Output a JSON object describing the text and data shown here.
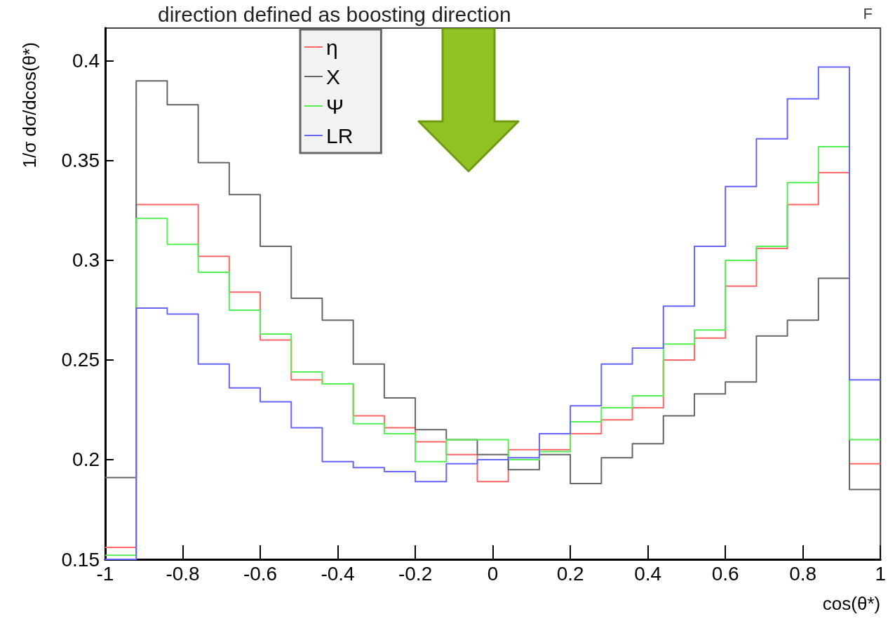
{
  "chart_data": {
    "type": "histogram",
    "title": "direction defined as boosting direction",
    "annotations": [
      "F"
    ],
    "xlabel": "cos(θ*)",
    "ylabel": "1/σ dσ/dcos(θ*)",
    "bins": [
      -1,
      -0.92,
      -0.84,
      -0.76,
      -0.68,
      -0.6,
      -0.52,
      -0.44,
      -0.36,
      -0.28,
      -0.2,
      -0.12,
      -0.04,
      0.04,
      0.12,
      0.2,
      0.28,
      0.36,
      0.44,
      0.52,
      0.6,
      0.68,
      0.76,
      0.84,
      0.92,
      1
    ],
    "series": [
      {
        "name": "η",
        "color": "#ff6666",
        "values": [
          0.156,
          0.328,
          0.328,
          0.302,
          0.284,
          0.26,
          0.24,
          0.238,
          0.222,
          0.216,
          0.209,
          0.2025,
          0.189,
          0.205,
          0.205,
          0.213,
          0.22,
          0.226,
          0.25,
          0.261,
          0.287,
          0.306,
          0.328,
          0.344,
          0.198
        ]
      },
      {
        "name": "X",
        "color": "#666666",
        "values": [
          0.191,
          0.39,
          0.378,
          0.349,
          0.333,
          0.307,
          0.281,
          0.27,
          0.248,
          0.231,
          0.215,
          0.21,
          0.2025,
          0.195,
          0.2025,
          0.188,
          0.201,
          0.208,
          0.222,
          0.233,
          0.239,
          0.262,
          0.27,
          0.291,
          0.185
        ]
      },
      {
        "name": "Ψ",
        "color": "#55ee55",
        "values": [
          0.152,
          0.321,
          0.308,
          0.294,
          0.275,
          0.263,
          0.244,
          0.238,
          0.218,
          0.213,
          0.199,
          0.21,
          0.21,
          0.2,
          0.204,
          0.219,
          0.226,
          0.232,
          0.258,
          0.265,
          0.3,
          0.307,
          0.339,
          0.357,
          0.21
        ]
      },
      {
        "name": "LR",
        "color": "#6666ff",
        "values": [
          0.15,
          0.276,
          0.273,
          0.248,
          0.236,
          0.229,
          0.216,
          0.199,
          0.196,
          0.194,
          0.189,
          0.198,
          0.2,
          0.201,
          0.213,
          0.227,
          0.248,
          0.256,
          0.277,
          0.307,
          0.337,
          0.361,
          0.381,
          0.397,
          0.24
        ]
      }
    ],
    "xlim": [
      -1,
      1
    ],
    "xticks": [
      -1,
      -0.8,
      -0.6,
      -0.4,
      -0.2,
      0,
      0.2,
      0.4,
      0.6,
      0.8,
      1
    ],
    "ylim": [
      0.15,
      0.4165
    ],
    "yticks": [
      0.15,
      0.2,
      0.25,
      0.3,
      0.35,
      0.4
    ],
    "legend": "top left",
    "grid": false
  }
}
